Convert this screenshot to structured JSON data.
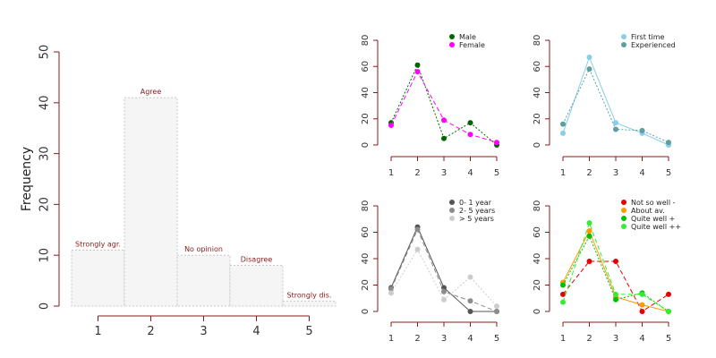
{
  "chart_data": [
    {
      "type": "bar",
      "id": "main",
      "ylabel": "Frequency",
      "categories": [
        "1",
        "2",
        "3",
        "4",
        "5"
      ],
      "values": [
        11,
        41,
        10,
        8,
        1
      ],
      "bar_labels": [
        "Strongly agr.",
        "Agree",
        "No opinion",
        "Disagree",
        "Strongly dis."
      ],
      "yticks": [
        0,
        10,
        20,
        30,
        40,
        50
      ],
      "ylim": [
        0,
        50
      ],
      "colors": {
        "bar_fill": "#f5f5f5",
        "bar_stroke": "#c8c8c8",
        "axis": "#8b1a1a",
        "bar_label": "#8b1a1a"
      }
    },
    {
      "type": "line",
      "id": "gender",
      "x": [
        1,
        2,
        3,
        4,
        5
      ],
      "xticks": [
        "1",
        "2",
        "3",
        "4",
        "5"
      ],
      "yticks": [
        0,
        20,
        40,
        60,
        80
      ],
      "ylim": [
        0,
        80
      ],
      "legend_position": "top-right",
      "series": [
        {
          "name": "Male",
          "values": [
            17,
            61,
            5,
            17,
            0
          ],
          "color": "#006400",
          "dash": "dotted"
        },
        {
          "name": "Female",
          "values": [
            15,
            56,
            19,
            8,
            2
          ],
          "color": "#ff00ff",
          "dash": "dashed"
        }
      ]
    },
    {
      "type": "line",
      "id": "experience",
      "x": [
        1,
        2,
        3,
        4,
        5
      ],
      "xticks": [
        "1",
        "2",
        "3",
        "4",
        "5"
      ],
      "yticks": [
        0,
        20,
        40,
        60,
        80
      ],
      "ylim": [
        0,
        80
      ],
      "legend_position": "top-right",
      "series": [
        {
          "name": "First time",
          "values": [
            9,
            67,
            17,
            9,
            0
          ],
          "color": "#87ceeb",
          "dash": "solid"
        },
        {
          "name": "Experienced",
          "values": [
            16,
            58,
            12,
            11,
            2
          ],
          "color": "#5f9ea0",
          "dash": "dotted"
        }
      ]
    },
    {
      "type": "line",
      "id": "years",
      "x": [
        1,
        2,
        3,
        4,
        5
      ],
      "xticks": [
        "1",
        "2",
        "3",
        "4",
        "5"
      ],
      "yticks": [
        0,
        20,
        40,
        60,
        80
      ],
      "ylim": [
        0,
        80
      ],
      "legend_position": "top-right",
      "series": [
        {
          "name": "0- 1 year",
          "values": [
            18,
            64,
            18,
            0,
            0
          ],
          "color": "#555555",
          "dash": "solid"
        },
        {
          "name": "2- 5 years",
          "values": [
            17,
            62,
            15,
            8,
            0
          ],
          "color": "#8c8c8c",
          "dash": "dashed"
        },
        {
          "name": "> 5 years",
          "values": [
            14,
            47,
            9,
            26,
            4
          ],
          "color": "#cccccc",
          "dash": "dotted"
        }
      ]
    },
    {
      "type": "line",
      "id": "wellness",
      "x": [
        1,
        2,
        3,
        4,
        5
      ],
      "xticks": [
        "1",
        "2",
        "3",
        "4",
        "5"
      ],
      "yticks": [
        0,
        20,
        40,
        60,
        80
      ],
      "ylim": [
        0,
        80
      ],
      "legend_position": "top-right",
      "series": [
        {
          "name": "Not so well -",
          "values": [
            13,
            38,
            38,
            0,
            13
          ],
          "color": "#e60000",
          "dash": "dashed"
        },
        {
          "name": "About av.",
          "values": [
            22,
            61,
            11,
            5,
            0
          ],
          "color": "#ff9900",
          "dash": "solid"
        },
        {
          "name": "Quite well +",
          "values": [
            20,
            57,
            9,
            14,
            0
          ],
          "color": "#00c000",
          "dash": "dotted"
        },
        {
          "name": "Quite well ++",
          "values": [
            7,
            67,
            13,
            13,
            0
          ],
          "color": "#33ee33",
          "dash": "dashed"
        }
      ]
    }
  ]
}
